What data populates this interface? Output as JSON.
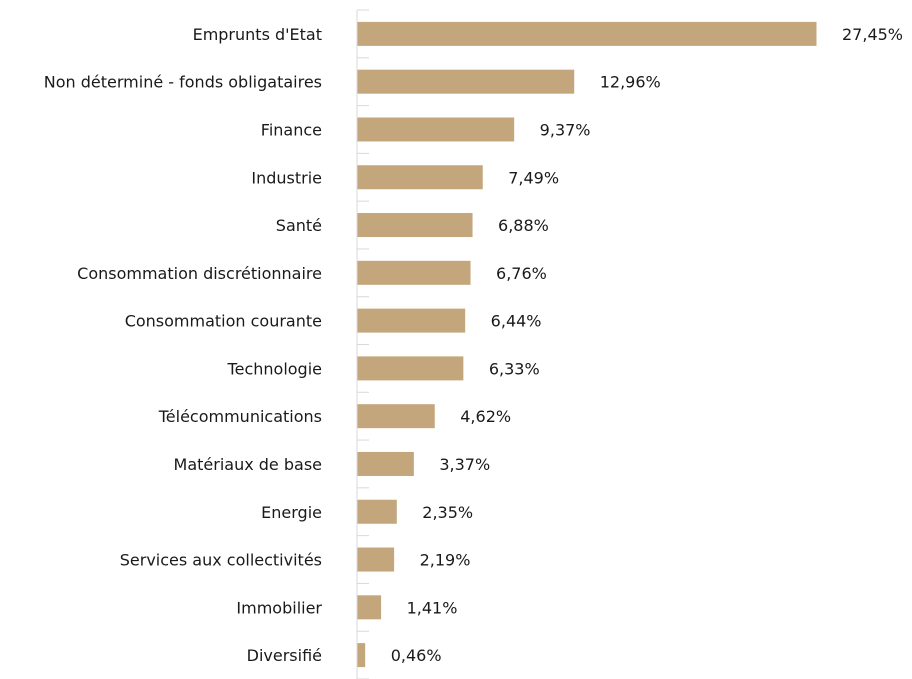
{
  "chart_data": {
    "type": "bar",
    "orientation": "horizontal",
    "categories": [
      "Emprunts d'Etat",
      "Non déterminé - fonds obligataires",
      "Finance",
      "Industrie",
      "Santé",
      "Consommation discrétionnaire",
      "Consommation courante",
      "Technologie",
      "Télécommunications",
      "Matériaux de base",
      "Energie",
      "Services aux collectivités",
      "Immobilier",
      "Diversifié"
    ],
    "values": [
      27.45,
      12.96,
      9.37,
      7.49,
      6.88,
      6.76,
      6.44,
      6.33,
      4.62,
      3.37,
      2.35,
      2.19,
      1.41,
      0.46
    ],
    "value_labels": [
      "27,45%",
      "12,96%",
      "9,37%",
      "7,49%",
      "6,88%",
      "6,76%",
      "6,44%",
      "6,33%",
      "4,62%",
      "3,37%",
      "2,35%",
      "2,19%",
      "1,41%",
      "0,46%"
    ],
    "xlim": [
      0,
      27.45
    ],
    "grid": false,
    "legend": "none",
    "colors": {
      "bar": "#c4a67c",
      "axis": "#d9d9d9",
      "text": "#1a1a1a"
    }
  }
}
